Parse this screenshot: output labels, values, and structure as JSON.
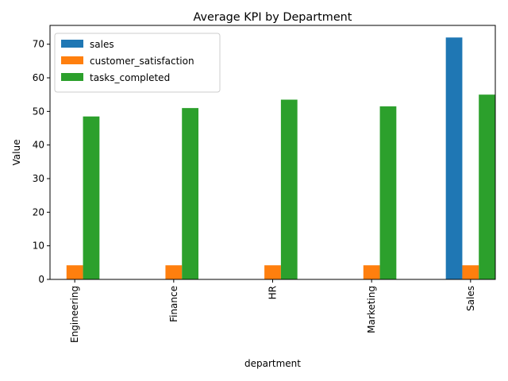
{
  "chart_data": {
    "type": "bar",
    "title": "Average KPI by Department",
    "xlabel": "department",
    "ylabel": "Value",
    "categories": [
      "Engineering",
      "Finance",
      "HR",
      "Marketing",
      "Sales"
    ],
    "series": [
      {
        "name": "sales",
        "color": "#1f77b4",
        "values": [
          0,
          0,
          0,
          0,
          72
        ]
      },
      {
        "name": "customer_satisfaction",
        "color": "#ff7f0e",
        "values": [
          4.2,
          4.2,
          4.2,
          4.2,
          4.2
        ]
      },
      {
        "name": "tasks_completed",
        "color": "#2ca02c",
        "values": [
          48.5,
          51,
          53.5,
          51.5,
          55
        ]
      }
    ],
    "ylim": [
      0,
      75.6
    ],
    "yticks": [
      0,
      10,
      20,
      30,
      40,
      50,
      60,
      70
    ],
    "legend_position": "top-left",
    "grid": false
  }
}
